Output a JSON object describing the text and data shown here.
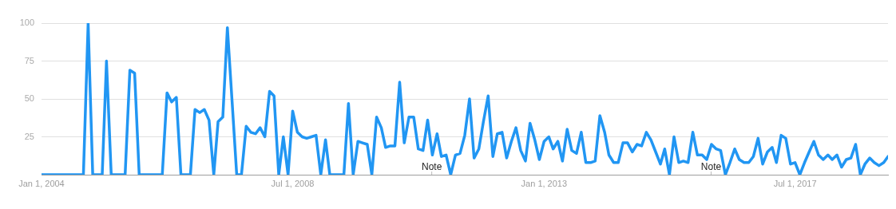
{
  "chart_data": {
    "type": "line",
    "x": [
      "2004-01",
      "2004-02",
      "2004-03",
      "2004-04",
      "2004-05",
      "2004-06",
      "2004-07",
      "2004-08",
      "2004-09",
      "2004-10",
      "2004-11",
      "2004-12",
      "2005-01",
      "2005-02",
      "2005-03",
      "2005-04",
      "2005-05",
      "2005-06",
      "2005-07",
      "2005-08",
      "2005-09",
      "2005-10",
      "2005-11",
      "2005-12",
      "2006-01",
      "2006-02",
      "2006-03",
      "2006-04",
      "2006-05",
      "2006-06",
      "2006-07",
      "2006-08",
      "2006-09",
      "2006-10",
      "2006-11",
      "2006-12",
      "2007-01",
      "2007-02",
      "2007-03",
      "2007-04",
      "2007-05",
      "2007-06",
      "2007-07",
      "2007-08",
      "2007-09",
      "2007-10",
      "2007-11",
      "2007-12",
      "2008-01",
      "2008-02",
      "2008-03",
      "2008-04",
      "2008-05",
      "2008-06",
      "2008-07",
      "2008-08",
      "2008-09",
      "2008-10",
      "2008-11",
      "2008-12",
      "2009-01",
      "2009-02",
      "2009-03",
      "2009-04",
      "2009-05",
      "2009-06",
      "2009-07",
      "2009-08",
      "2009-09",
      "2009-10",
      "2009-11",
      "2009-12",
      "2010-01",
      "2010-02",
      "2010-03",
      "2010-04",
      "2010-05",
      "2010-06",
      "2010-07",
      "2010-08",
      "2010-09",
      "2010-10",
      "2010-11",
      "2010-12",
      "2011-01",
      "2011-02",
      "2011-03",
      "2011-04",
      "2011-05",
      "2011-06",
      "2011-07",
      "2011-08",
      "2011-09",
      "2011-10",
      "2011-11",
      "2011-12",
      "2012-01",
      "2012-02",
      "2012-03",
      "2012-04",
      "2012-05",
      "2012-06",
      "2012-07",
      "2012-08",
      "2012-09",
      "2012-10",
      "2012-11",
      "2012-12",
      "2013-01",
      "2013-02",
      "2013-03",
      "2013-04",
      "2013-05",
      "2013-06",
      "2013-07",
      "2013-08",
      "2013-09",
      "2013-10",
      "2013-11",
      "2013-12",
      "2014-01",
      "2014-02",
      "2014-03",
      "2014-04",
      "2014-05",
      "2014-06",
      "2014-07",
      "2014-08",
      "2014-09",
      "2014-10",
      "2014-11",
      "2014-12",
      "2015-01",
      "2015-02",
      "2015-03",
      "2015-04",
      "2015-05",
      "2015-06",
      "2015-07",
      "2015-08",
      "2015-09",
      "2015-10",
      "2015-11",
      "2015-12",
      "2016-01",
      "2016-02",
      "2016-03",
      "2016-04",
      "2016-05",
      "2016-06",
      "2016-07",
      "2016-08",
      "2016-09",
      "2016-10",
      "2016-11",
      "2016-12",
      "2017-01",
      "2017-02",
      "2017-03",
      "2017-04",
      "2017-05",
      "2017-06",
      "2017-07",
      "2017-08",
      "2017-09",
      "2017-10",
      "2017-11",
      "2017-12",
      "2018-01",
      "2018-02",
      "2018-03",
      "2018-04",
      "2018-05",
      "2018-06",
      "2018-07",
      "2018-08",
      "2018-09",
      "2018-10",
      "2018-11",
      "2018-12",
      "2019-01",
      "2019-02",
      "2019-03"
    ],
    "series": [
      {
        "color": "#2196f3",
        "values": [
          0,
          0,
          0,
          0,
          0,
          0,
          0,
          0,
          0,
          0,
          100,
          0,
          0,
          0,
          75,
          0,
          0,
          0,
          0,
          69,
          67,
          0,
          0,
          0,
          0,
          0,
          0,
          54,
          48,
          51,
          0,
          0,
          0,
          43,
          41,
          43,
          36,
          0,
          35,
          38,
          97,
          48,
          0,
          0,
          32,
          28,
          27,
          31,
          25,
          55,
          52,
          0,
          25,
          0,
          42,
          28,
          25,
          24,
          25,
          26,
          0,
          23,
          0,
          0,
          0,
          0,
          47,
          0,
          22,
          21,
          20,
          0,
          38,
          31,
          18,
          19,
          19,
          61,
          21,
          38,
          38,
          17,
          16,
          36,
          13,
          27,
          12,
          13,
          0,
          13,
          14,
          26,
          50,
          11,
          17,
          35,
          52,
          12,
          27,
          28,
          11,
          22,
          31,
          16,
          9,
          34,
          23,
          10,
          22,
          25,
          17,
          22,
          9,
          30,
          16,
          14,
          28,
          8,
          8,
          9,
          39,
          28,
          13,
          8,
          8,
          21,
          21,
          15,
          20,
          19,
          28,
          23,
          15,
          7,
          17,
          0,
          25,
          8,
          9,
          8,
          28,
          13,
          13,
          10,
          20,
          17,
          16,
          0,
          8,
          17,
          10,
          8,
          8,
          12,
          24,
          7,
          15,
          18,
          8,
          26,
          24,
          7,
          8,
          0,
          8,
          15,
          22,
          13,
          10,
          13,
          10,
          13,
          5,
          10,
          11,
          20,
          0,
          7,
          11,
          8,
          6,
          8,
          12
        ]
      }
    ],
    "xlim": [
      "2004-01",
      "2019-03"
    ],
    "xticks": [
      {
        "value": "2004-01-01",
        "label": "Jan 1, 2004"
      },
      {
        "value": "2008-07-01",
        "label": "Jul 1, 2008"
      },
      {
        "value": "2013-01-01",
        "label": "Jan 1, 2013"
      },
      {
        "value": "2017-07-01",
        "label": "Jul 1, 2017"
      }
    ],
    "ylim": [
      0,
      100
    ],
    "yticks": [
      25,
      50,
      75,
      100
    ],
    "grid": "y",
    "legend": false,
    "marker": "none",
    "line_style": "solid",
    "annotations": [
      "Note",
      "Note"
    ]
  }
}
